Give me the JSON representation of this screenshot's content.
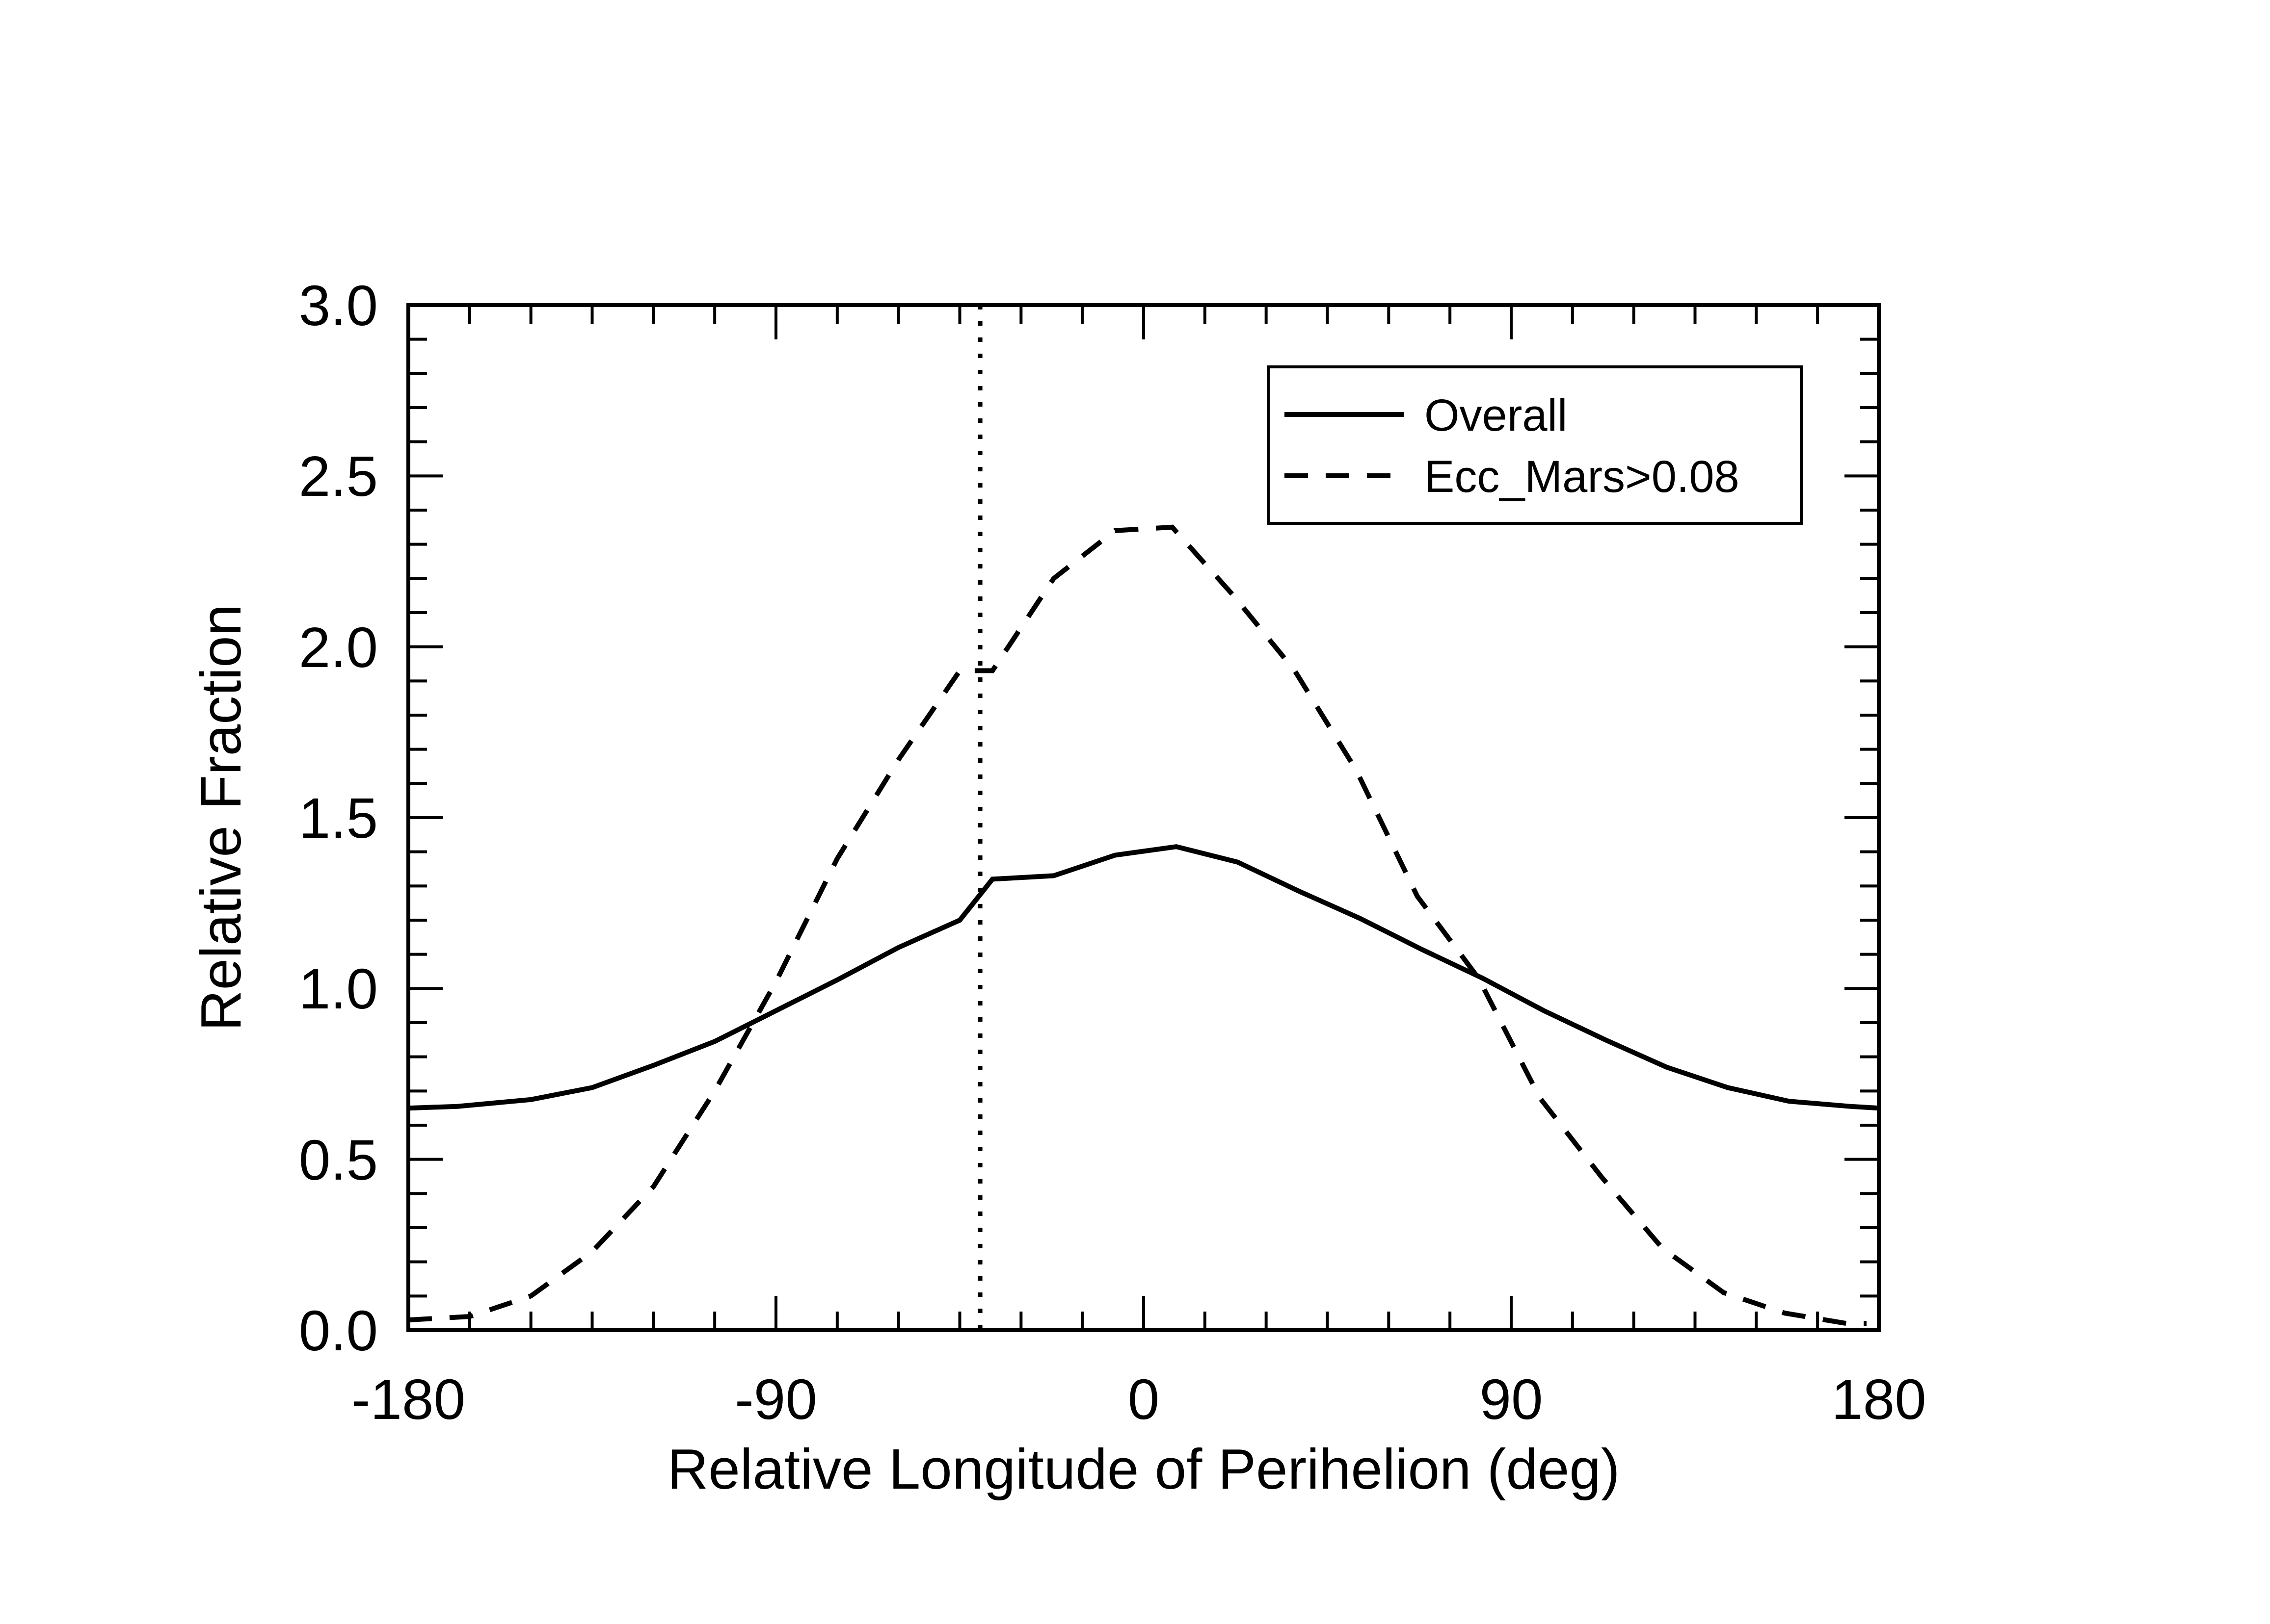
{
  "chart_data": {
    "type": "line",
    "title": "",
    "xlabel": "Relative Longitude of Perihelion (deg)",
    "ylabel": "Relative Fraction",
    "xlim": [
      -180,
      180
    ],
    "ylim": [
      0.0,
      3.0
    ],
    "x_ticks": [
      -180,
      -90,
      0,
      90,
      180
    ],
    "x_tick_labels": [
      "-180",
      "-90",
      "0",
      "90",
      "180"
    ],
    "y_ticks": [
      0.0,
      0.5,
      1.0,
      1.5,
      2.0,
      2.5,
      3.0
    ],
    "y_tick_labels": [
      "0.0",
      "0.5",
      "1.0",
      "1.5",
      "2.0",
      "2.5",
      "3.0"
    ],
    "grid": false,
    "legend_position": "top-right",
    "series": [
      {
        "name": "Overall",
        "style": "solid",
        "color": "#000000",
        "x": [
          -180,
          -168,
          -150,
          -135,
          -120,
          -105,
          -90,
          -75,
          -60,
          -45,
          -37,
          -22,
          -7,
          8,
          23,
          38,
          53,
          68,
          83,
          98,
          113,
          128,
          143,
          158,
          173,
          180
        ],
        "y": [
          0.65,
          0.655,
          0.675,
          0.71,
          0.775,
          0.845,
          0.935,
          1.025,
          1.12,
          1.2,
          1.32,
          1.33,
          1.39,
          1.415,
          1.37,
          1.285,
          1.205,
          1.115,
          1.03,
          0.935,
          0.85,
          0.77,
          0.71,
          0.67,
          0.655,
          0.65
        ]
      },
      {
        "name": "Ecc_Mars>0.08",
        "style": "dashed",
        "color": "#000000",
        "x": [
          -180,
          -165,
          -150,
          -135,
          -120,
          -105,
          -90,
          -75,
          -60,
          -45,
          -37,
          -22,
          -7,
          7,
          22,
          37,
          52,
          67,
          82,
          97,
          112,
          127,
          142,
          157,
          172,
          177
        ],
        "y": [
          0.03,
          0.04,
          0.1,
          0.23,
          0.42,
          0.7,
          1.02,
          1.38,
          1.67,
          1.93,
          1.93,
          2.2,
          2.34,
          2.35,
          2.15,
          1.93,
          1.64,
          1.27,
          1.03,
          0.68,
          0.45,
          0.24,
          0.11,
          0.05,
          0.02,
          0.02
        ]
      }
    ],
    "annotations": [
      {
        "type": "vertical_line",
        "style": "dotted",
        "x": -40
      }
    ]
  },
  "legend": {
    "entries": [
      "Overall",
      "Ecc_Mars>0.08"
    ]
  }
}
